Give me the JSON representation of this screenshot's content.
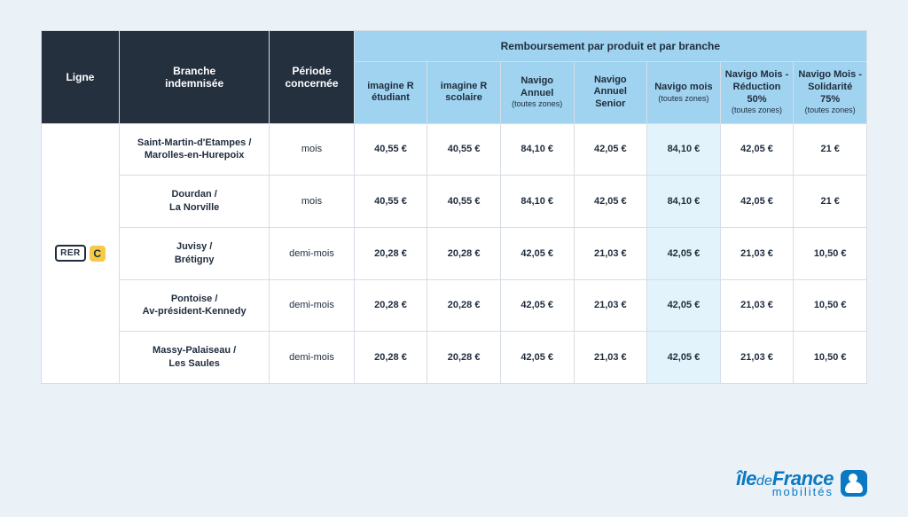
{
  "headers": {
    "ligne": "Ligne",
    "branche": "Branche\nindemnisée",
    "periode": "Période\nconcernée",
    "group": "Remboursement par produit et par branche",
    "products": [
      {
        "title": "imagine R étudiant",
        "sub": ""
      },
      {
        "title": "imagine R scolaire",
        "sub": ""
      },
      {
        "title": "Navigo Annuel",
        "sub": "(toutes zones)"
      },
      {
        "title": "Navigo Annuel Senior",
        "sub": ""
      },
      {
        "title": "Navigo mois",
        "sub": "(toutes zones)"
      },
      {
        "title": "Navigo Mois - Réduction 50%",
        "sub": "(toutes zones)"
      },
      {
        "title": "Navigo Mois - Solidarité 75%",
        "sub": "(toutes zones)"
      }
    ]
  },
  "line": {
    "rer": "RER",
    "letter": "C"
  },
  "rows": [
    {
      "branch": "Saint-Martin-d'Etampes / Marolles-en-Hurepoix",
      "period": "mois",
      "vals": [
        "40,55 €",
        "40,55 €",
        "84,10 €",
        "42,05 €",
        "84,10 €",
        "42,05 €",
        "21 €"
      ]
    },
    {
      "branch": "Dourdan / La Norville",
      "period": "mois",
      "vals": [
        "40,55 €",
        "40,55 €",
        "84,10 €",
        "42,05 €",
        "84,10 €",
        "42,05 €",
        "21 €"
      ]
    },
    {
      "branch": "Juvisy / Brétigny",
      "period": "demi-mois",
      "vals": [
        "20,28 €",
        "20,28 €",
        "42,05 €",
        "21,03 €",
        "42,05 €",
        "21,03 €",
        "10,50 €"
      ]
    },
    {
      "branch": "Pontoise / Av-président-Kennedy",
      "period": "demi-mois",
      "vals": [
        "20,28 €",
        "20,28 €",
        "42,05 €",
        "21,03 €",
        "42,05 €",
        "21,03 €",
        "10,50 €"
      ]
    },
    {
      "branch": "Massy-Palaiseau / Les Saules",
      "period": "demi-mois",
      "vals": [
        "20,28 €",
        "20,28 €",
        "42,05 €",
        "21,03 €",
        "42,05 €",
        "21,03 €",
        "10,50 €"
      ]
    }
  ],
  "highlight_col": 4,
  "logo": {
    "ile": "île",
    "de": "de",
    "france": "France",
    "mob": "mobilités"
  },
  "colors": {
    "page_bg": "#eaf2f8",
    "dark_header": "#25303e",
    "light_header": "#9fd3ef",
    "highlight": "#e3f3fb",
    "border": "#d6dde5",
    "brand": "#0a78c2",
    "badge_c": "#f7c948"
  }
}
